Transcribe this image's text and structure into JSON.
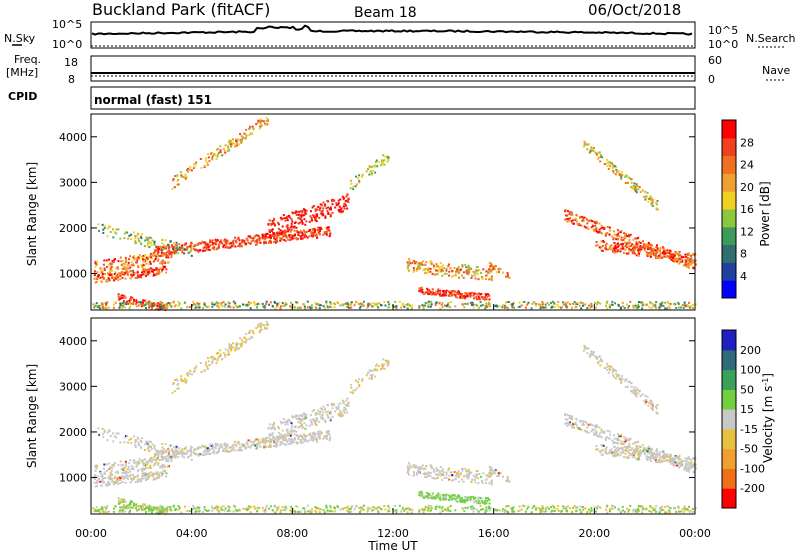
{
  "header": {
    "station": "Buckland Park (fitACF)",
    "beam": "Beam 18",
    "date": "06/Oct/2018"
  },
  "side_labels": {
    "nsky": "N.Sky",
    "nsearch": "N.Search",
    "freq_line1": "Freq.",
    "freq_line2": "[MHz]",
    "nave": "Nave",
    "cpid": "CPID",
    "cpid_value": "normal (fast) 151"
  },
  "noise_panel": {
    "left_ticks": [
      "10^5",
      "10^0"
    ],
    "right_ticks": [
      "10^5",
      "10^0"
    ]
  },
  "freq_panel": {
    "left_ticks": [
      "18",
      "8"
    ],
    "right_ticks": [
      "60",
      "0"
    ]
  },
  "colors": {
    "power_scale": [
      "#0000ff",
      "#2040a0",
      "#2e6e6e",
      "#3c9a5a",
      "#8cc83c",
      "#f0d020",
      "#f0a030",
      "#f07020",
      "#f04020",
      "#ff0000"
    ],
    "velocity_scale": [
      "#2020c0",
      "#2f6a7a",
      "#3aa05a",
      "#70d040",
      "#c8c8c8",
      "#e8c040",
      "#f0a030",
      "#f07018",
      "#ff0000"
    ]
  },
  "chart_data": [
    {
      "type": "heatmap",
      "name": "power",
      "ylabel": "Slant Range [km]",
      "ylim": [
        200,
        4500
      ],
      "yticks": [
        "1000",
        "2000",
        "3000",
        "4000"
      ],
      "colorbar_label": "Power [dB]",
      "colorbar_ticks": [
        "4",
        "8",
        "12",
        "16",
        "20",
        "24",
        "28"
      ]
    },
    {
      "type": "heatmap",
      "name": "velocity",
      "ylabel": "Slant Range [km]",
      "ylim": [
        200,
        4500
      ],
      "yticks": [
        "1000",
        "2000",
        "3000",
        "4000"
      ],
      "colorbar_label": "Velocity [m s^-1]",
      "colorbar_ticks": [
        "200",
        "100",
        "50",
        "15",
        "-15",
        "-50",
        "-100",
        "-200"
      ],
      "xlabel": "Time UT",
      "xticks": [
        "00:00",
        "04:00",
        "08:00",
        "12:00",
        "16:00",
        "20:00",
        "00:00"
      ]
    }
  ]
}
